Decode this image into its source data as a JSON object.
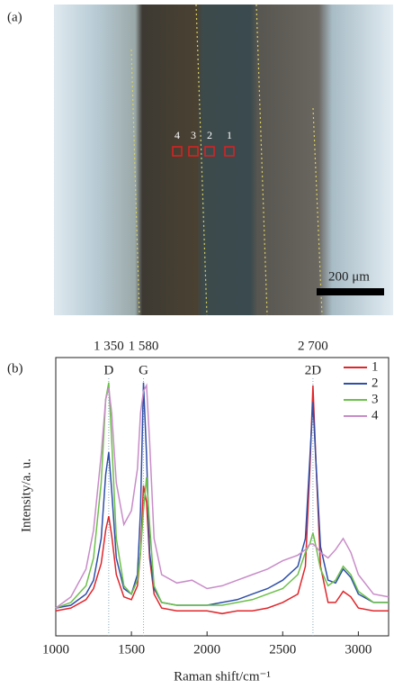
{
  "image": {
    "label": "(a)",
    "markers": [
      "4",
      "3",
      "2",
      "1"
    ],
    "scale_bar": "200 μm"
  },
  "chart_data": {
    "type": "line",
    "panel_label": "(b)",
    "x_label": "Raman shift/cm⁻¹",
    "y_label": "Intensity/a. u.",
    "x": [
      1000,
      1100,
      1200,
      1250,
      1300,
      1330,
      1350,
      1370,
      1400,
      1450,
      1500,
      1540,
      1560,
      1580,
      1600,
      1620,
      1650,
      1700,
      1800,
      1900,
      2000,
      2100,
      2200,
      2300,
      2400,
      2500,
      2600,
      2650,
      2680,
      2700,
      2720,
      2750,
      2800,
      2850,
      2900,
      2950,
      3000,
      3100,
      3200
    ],
    "series": [
      {
        "name": "1",
        "color": "#e0262b",
        "values": [
          9,
          10,
          13,
          17,
          26,
          38,
          43,
          36,
          22,
          14,
          13,
          18,
          30,
          54,
          48,
          28,
          15,
          10,
          9,
          9,
          9,
          8,
          9,
          9,
          10,
          12,
          15,
          25,
          60,
          90,
          62,
          25,
          12,
          12,
          16,
          14,
          10,
          9,
          9
        ]
      },
      {
        "name": "2",
        "color": "#2f4fa8",
        "values": [
          10,
          11,
          15,
          20,
          35,
          58,
          66,
          52,
          28,
          17,
          15,
          22,
          45,
          91,
          65,
          30,
          17,
          12,
          11,
          11,
          11,
          12,
          13,
          15,
          17,
          20,
          25,
          35,
          64,
          84,
          62,
          32,
          20,
          19,
          24,
          21,
          15,
          12,
          12
        ]
      },
      {
        "name": "3",
        "color": "#6cc04a",
        "values": [
          10,
          12,
          18,
          28,
          55,
          85,
          91,
          70,
          35,
          18,
          15,
          20,
          30,
          45,
          57,
          40,
          18,
          12,
          11,
          11,
          11,
          11,
          12,
          13,
          15,
          17,
          22,
          30,
          33,
          37,
          32,
          24,
          18,
          20,
          25,
          22,
          16,
          12,
          12
        ]
      },
      {
        "name": "4",
        "color": "#c88cc8",
        "values": [
          10,
          14,
          24,
          38,
          65,
          85,
          89,
          80,
          55,
          40,
          45,
          60,
          80,
          88,
          90,
          70,
          35,
          22,
          19,
          20,
          17,
          18,
          20,
          22,
          24,
          27,
          29,
          31,
          33,
          33,
          32,
          30,
          28,
          31,
          35,
          30,
          22,
          15,
          14
        ]
      }
    ],
    "peaks": [
      {
        "value": 1350,
        "label": "1 350",
        "name": "D"
      },
      {
        "value": 1580,
        "label": "1 580",
        "name": "G"
      },
      {
        "value": 2700,
        "label": "2 700",
        "name": "2D"
      }
    ],
    "xlim": [
      1000,
      3200
    ],
    "xticks": [
      1000,
      1500,
      2000,
      2500,
      3000
    ],
    "ylim": [
      0,
      100
    ]
  }
}
